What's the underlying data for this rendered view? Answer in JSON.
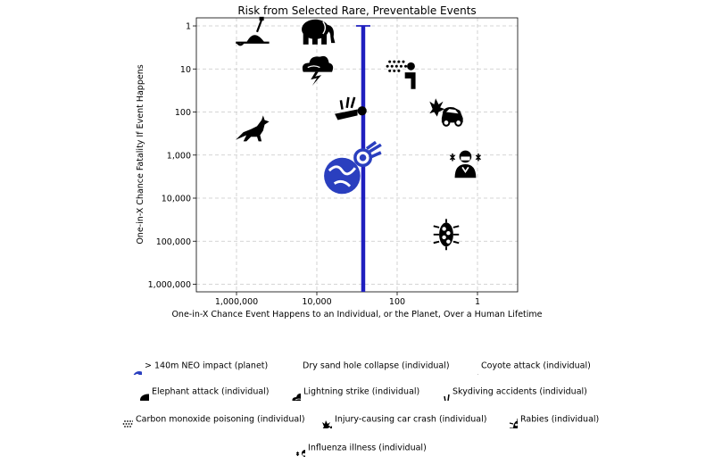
{
  "chart_data": {
    "type": "scatter",
    "title": "Risk from Selected Rare, Preventable Events",
    "xlabel": "One-in-X Chance Event Happens to an Individual, or the Planet, Over a Human Lifetime",
    "ylabel": "One-in-X Chance Fatality If Event Happens",
    "x_scale": "log-reversed",
    "y_scale": "log-reversed",
    "xlim": [
      10000000,
      0.1
    ],
    "ylim": [
      0.65,
      1500000
    ],
    "x_ticks": [
      {
        "value": 1000000,
        "label": "1,000,000"
      },
      {
        "value": 10000,
        "label": "10,000"
      },
      {
        "value": 100,
        "label": "100"
      },
      {
        "value": 1,
        "label": "1"
      }
    ],
    "y_ticks": [
      {
        "value": 1,
        "label": "1"
      },
      {
        "value": 10,
        "label": "10"
      },
      {
        "value": 100,
        "label": "100"
      },
      {
        "value": 1000,
        "label": "1,000"
      },
      {
        "value": 10000,
        "label": "10,000"
      },
      {
        "value": 100000,
        "label": "100,000"
      },
      {
        "value": 1000000,
        "label": "1,000,000"
      }
    ],
    "grid": true,
    "neo_range_bar": {
      "x": 700,
      "y_from": 1,
      "y_to": 1500000,
      "color": "#1f1fbf"
    },
    "points": [
      {
        "name": "> 140m NEO impact (planet)",
        "icon": "earth-asteroid-icon",
        "x": 1500,
        "y": 2000,
        "color": "#2a3fbf"
      },
      {
        "name": "Dry sand hole collapse (individual)",
        "icon": "sand-hole-icon",
        "x": 400000,
        "y": 1.5,
        "color": "#000000"
      },
      {
        "name": "Coyote attack (individual)",
        "icon": "coyote-icon",
        "x": 400000,
        "y": 250,
        "color": "#000000"
      },
      {
        "name": "Elephant attack (individual)",
        "icon": "elephant-icon",
        "x": 10000,
        "y": 1.3,
        "color": "#000000"
      },
      {
        "name": "Lightning strike (individual)",
        "icon": "lightning-icon",
        "x": 10000,
        "y": 10,
        "color": "#000000"
      },
      {
        "name": "Skydiving accidents (individual)",
        "icon": "skydiver-icon",
        "x": 1500,
        "y": 80,
        "color": "#000000"
      },
      {
        "name": "Carbon monoxide poisoning (individual)",
        "icon": "co-poisoning-icon",
        "x": 70,
        "y": 13,
        "color": "#000000"
      },
      {
        "name": "Injury-causing car crash (individual)",
        "icon": "car-crash-icon",
        "x": 6,
        "y": 100,
        "color": "#000000"
      },
      {
        "name": "Rabies (individual)",
        "icon": "rabies-icon",
        "x": 6,
        "y": 70000,
        "color": "#000000"
      },
      {
        "name": "Influenza illness (individual)",
        "icon": "influenza-icon",
        "x": 2,
        "y": 1500,
        "color": "#000000"
      }
    ]
  },
  "legend": {
    "items": [
      {
        "label": "> 140m NEO impact (planet)",
        "icon": "earth-asteroid-icon"
      },
      {
        "label": "Dry sand hole collapse (individual)",
        "icon": "sand-hole-icon"
      },
      {
        "label": "Coyote attack (individual)",
        "icon": "coyote-icon"
      },
      {
        "label": "Elephant attack (individual)",
        "icon": "elephant-icon"
      },
      {
        "label": "Lightning strike (individual)",
        "icon": "lightning-icon"
      },
      {
        "label": "Skydiving accidents (individual)",
        "icon": "skydiver-icon"
      },
      {
        "label": "Carbon monoxide poisoning (individual)",
        "icon": "co-poisoning-icon"
      },
      {
        "label": "Injury-causing car crash (individual)",
        "icon": "car-crash-icon"
      },
      {
        "label": "Rabies (individual)",
        "icon": "rabies-icon"
      },
      {
        "label": "Influenza illness (individual)",
        "icon": "influenza-icon"
      }
    ]
  }
}
